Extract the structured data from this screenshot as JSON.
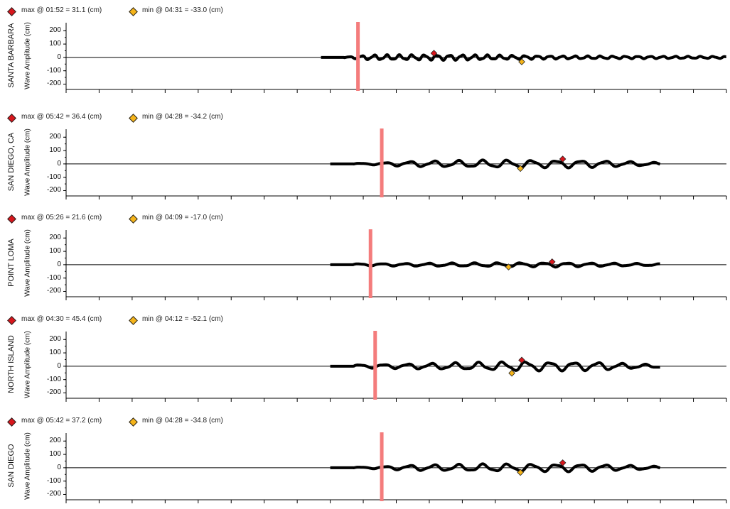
{
  "colors": {
    "max_marker": "#d8161c",
    "min_marker": "#f5b419",
    "vertical_bar": "#f47c7c",
    "trace": "#000000",
    "axis": "#000000"
  },
  "legend_icons": {
    "max": "red-diamond-icon",
    "min": "yellow-diamond-icon"
  },
  "ylabel": "Wave Amplitude (cm)",
  "chart_data": [
    {
      "type": "line",
      "station": "SANTA BARBARA",
      "max_label": "max @  01:52 = 31.1 (cm)",
      "min_label": "min @  04:31 = -33.0 (cm)",
      "ylabel": "Wave Amplitude (cm)",
      "yticks": [
        "200",
        "100",
        "0",
        "-100",
        "-200"
      ],
      "ylim": [
        -240,
        260
      ],
      "xlim": [
        0,
        1
      ],
      "trace_start": 0.386,
      "trace_end": 1.0,
      "period": 0.019,
      "amplitude": 18,
      "envelope": [
        [
          0.42,
          0.1
        ],
        [
          0.46,
          0.9
        ],
        [
          0.6,
          1.0
        ],
        [
          0.72,
          0.6
        ],
        [
          0.85,
          0.45
        ],
        [
          1.0,
          0.35
        ]
      ],
      "vline": 0.442,
      "max_point": {
        "x": 0.557,
        "y": 31.1
      },
      "min_point": {
        "x": 0.69,
        "y": -33.0
      }
    },
    {
      "type": "line",
      "station": "SAN DIEGO, CA",
      "max_label": "max @  05:42 = 36.4 (cm)",
      "min_label": "min @  04:28 = -34.2 (cm)",
      "ylabel": "Wave Amplitude (cm)",
      "yticks": [
        "200",
        "100",
        "0",
        "-100",
        "-200"
      ],
      "ylim": [
        -240,
        260
      ],
      "xlim": [
        0,
        1
      ],
      "trace_start": 0.4,
      "trace_end": 0.9,
      "period": 0.037,
      "amplitude": 24,
      "envelope": [
        [
          0.46,
          0.2
        ],
        [
          0.52,
          0.7
        ],
        [
          0.64,
          1.0
        ],
        [
          0.78,
          1.0
        ],
        [
          0.86,
          0.6
        ],
        [
          0.9,
          0.3
        ]
      ],
      "vline": 0.478,
      "max_point": {
        "x": 0.752,
        "y": 36.4
      },
      "min_point": {
        "x": 0.688,
        "y": -34.2
      }
    },
    {
      "type": "line",
      "station": "POINT LOMA",
      "max_label": "max @  05:26 = 21.6 (cm)",
      "min_label": "min @  04:09 = -17.0 (cm)",
      "ylabel": "Wave Amplitude (cm)",
      "yticks": [
        "200",
        "100",
        "0",
        "-100",
        "-200"
      ],
      "ylim": [
        -240,
        260
      ],
      "xlim": [
        0,
        1
      ],
      "trace_start": 0.4,
      "trace_end": 0.9,
      "period": 0.035,
      "amplitude": 14,
      "envelope": [
        [
          0.45,
          0.5
        ],
        [
          0.6,
          0.8
        ],
        [
          0.74,
          1.0
        ],
        [
          0.86,
          0.6
        ],
        [
          0.9,
          0.4
        ]
      ],
      "vline": 0.461,
      "max_point": {
        "x": 0.736,
        "y": 21.6
      },
      "min_point": {
        "x": 0.67,
        "y": -17.0
      }
    },
    {
      "type": "line",
      "station": "NORTH ISLAND",
      "max_label": "max @  04:30 = 45.4 (cm)",
      "min_label": "min @  04:12 = -52.1 (cm)",
      "ylabel": "Wave Amplitude (cm)",
      "yticks": [
        "200",
        "100",
        "0",
        "-100",
        "-200"
      ],
      "ylim": [
        -240,
        260
      ],
      "xlim": [
        0,
        1
      ],
      "trace_start": 0.4,
      "trace_end": 0.9,
      "period": 0.036,
      "amplitude": 30,
      "envelope": [
        [
          0.45,
          0.35
        ],
        [
          0.58,
          0.7
        ],
        [
          0.69,
          1.0
        ],
        [
          0.8,
          0.9
        ],
        [
          0.86,
          0.5
        ],
        [
          0.9,
          0.3
        ]
      ],
      "vline": 0.468,
      "max_point": {
        "x": 0.69,
        "y": 45.4
      },
      "min_point": {
        "x": 0.675,
        "y": -52.1
      }
    },
    {
      "type": "line",
      "station": "SAN DIEGO",
      "max_label": "max @  05:42 = 37.2 (cm)",
      "min_label": "min @  04:28 = -34.8 (cm)",
      "ylabel": "Wave Amplitude (cm)",
      "yticks": [
        "200",
        "100",
        "0",
        "-100",
        "-200"
      ],
      "ylim": [
        -240,
        260
      ],
      "xlim": [
        0,
        1
      ],
      "trace_start": 0.4,
      "trace_end": 0.9,
      "period": 0.037,
      "amplitude": 24,
      "envelope": [
        [
          0.46,
          0.2
        ],
        [
          0.52,
          0.7
        ],
        [
          0.64,
          1.0
        ],
        [
          0.78,
          1.0
        ],
        [
          0.86,
          0.6
        ],
        [
          0.9,
          0.3
        ]
      ],
      "vline": 0.478,
      "max_point": {
        "x": 0.752,
        "y": 37.2
      },
      "min_point": {
        "x": 0.688,
        "y": -34.8
      }
    }
  ]
}
